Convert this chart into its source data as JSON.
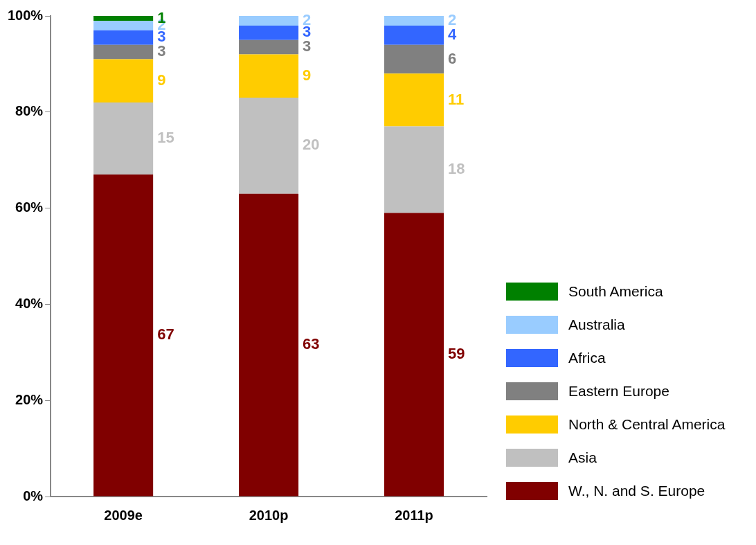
{
  "chart_data": {
    "type": "bar",
    "stacked": true,
    "categories": [
      "2009e",
      "2010p",
      "2011p"
    ],
    "series": [
      {
        "name": "W., N. and S. Europe",
        "color": "#800000",
        "values": [
          67,
          63,
          59
        ]
      },
      {
        "name": "Asia",
        "color": "#c0c0c0",
        "values": [
          15,
          20,
          18
        ]
      },
      {
        "name": "North & Central America",
        "color": "#ffcc00",
        "values": [
          9,
          9,
          11
        ]
      },
      {
        "name": "Eastern Europe",
        "color": "#808080",
        "values": [
          3,
          3,
          6
        ]
      },
      {
        "name": "Africa",
        "color": "#3366ff",
        "values": [
          3,
          3,
          4
        ]
      },
      {
        "name": "Australia",
        "color": "#99ccff",
        "values": [
          2,
          2,
          2
        ]
      },
      {
        "name": "South America",
        "color": "#008000",
        "values": [
          1,
          null,
          null
        ]
      }
    ],
    "ylim": [
      0,
      100
    ],
    "yticks": [
      {
        "value": 0,
        "label": "0%"
      },
      {
        "value": 20,
        "label": "20%"
      },
      {
        "value": 40,
        "label": "40%"
      },
      {
        "value": 60,
        "label": "60%"
      },
      {
        "value": 80,
        "label": "80%"
      },
      {
        "value": 100,
        "label": "100%"
      }
    ],
    "data_labels": true,
    "legend": "right",
    "grid": false
  }
}
